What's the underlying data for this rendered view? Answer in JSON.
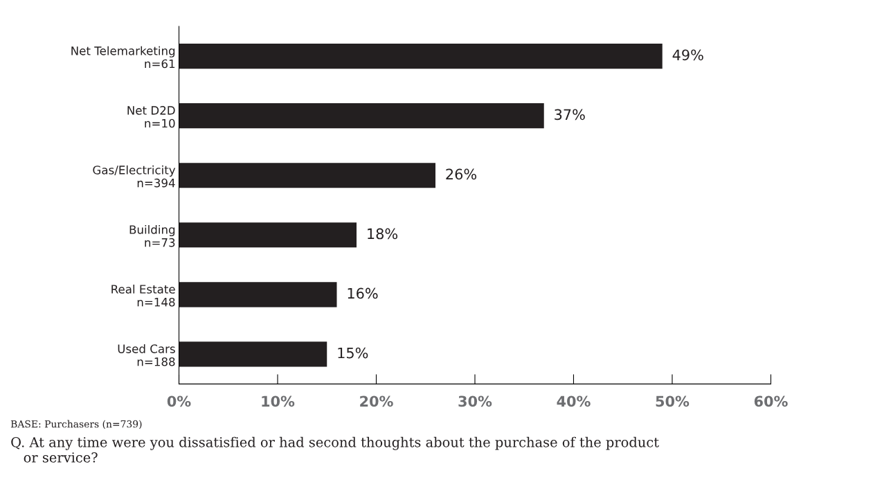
{
  "chart_data": {
    "type": "bar",
    "orientation": "horizontal",
    "categories": [
      "Net Telemarketing\nn=61",
      "Net D2D\nn=10",
      "Gas/Electricity\nn=394",
      "Building\nn=73",
      "Real Estate\nn=148",
      "Used Cars\nn=188"
    ],
    "values": [
      49,
      37,
      26,
      18,
      16,
      15
    ],
    "value_labels": [
      "49%",
      "37%",
      "26%",
      "18%",
      "16%",
      "15%"
    ],
    "color": "#231f20",
    "xlim": [
      0,
      60
    ],
    "xticks": [
      {
        "value": 0,
        "label": "0%"
      },
      {
        "value": 10,
        "label": "10%"
      },
      {
        "value": 20,
        "label": "20%"
      },
      {
        "value": 30,
        "label": "30%"
      },
      {
        "value": 40,
        "label": "40%"
      },
      {
        "value": 50,
        "label": "50%"
      },
      {
        "value": 60,
        "label": "60%"
      }
    ],
    "grid": false,
    "legend": false,
    "annotations": [
      "BASE: Purchasers (n=739)",
      "Q. At any time were you dissatisfied or had second thoughts about the purchase of the product\n   or service?"
    ]
  }
}
